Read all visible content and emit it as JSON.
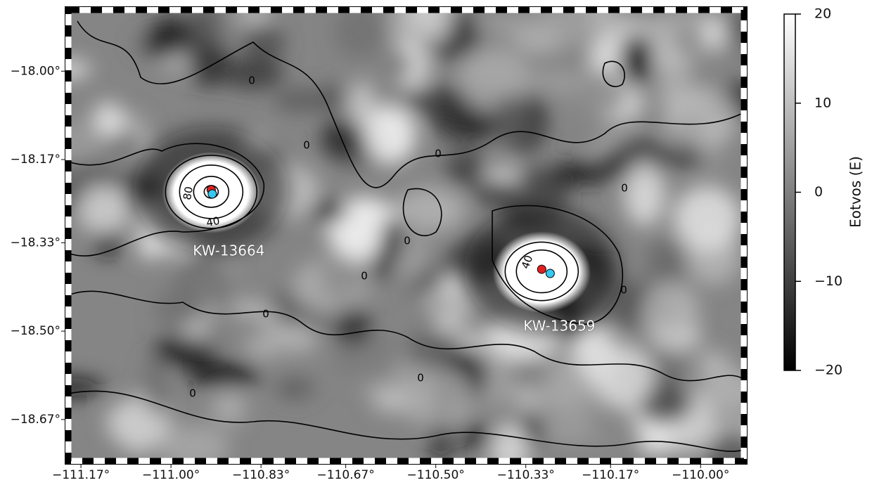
{
  "map": {
    "xlim": [
      -111.194,
      -109.918
    ],
    "ylim": [
      -18.75,
      -17.882
    ],
    "xticks": [
      {
        "value": -111.17,
        "label": "−111.17°"
      },
      {
        "value": -111.0,
        "label": "−111.00°"
      },
      {
        "value": -110.83,
        "label": "−110.83°"
      },
      {
        "value": -110.67,
        "label": "−110.67°"
      },
      {
        "value": -110.5,
        "label": "−110.50°"
      },
      {
        "value": -110.33,
        "label": "−110.33°"
      },
      {
        "value": -110.17,
        "label": "−110.17°"
      },
      {
        "value": -110.0,
        "label": "−110.00°"
      }
    ],
    "yticks": [
      {
        "value": -18.0,
        "label": "−18.00°"
      },
      {
        "value": -18.17,
        "label": "−18.17°"
      },
      {
        "value": -18.33,
        "label": "−18.33°"
      },
      {
        "value": -18.5,
        "label": "−18.50°"
      },
      {
        "value": -18.67,
        "label": "−18.67°"
      }
    ],
    "stations": [
      {
        "name": "KW-13664",
        "red": [
          -110.924,
          -18.228
        ],
        "cyan": [
          -110.922,
          -18.236
        ]
      },
      {
        "name": "KW-13659",
        "red": [
          -110.3,
          -18.381
        ],
        "cyan": [
          -110.284,
          -18.389
        ]
      }
    ],
    "contour_labels": [
      "80",
      "40",
      "40",
      "0",
      "0",
      "0",
      "0",
      "0",
      "0",
      "0",
      "0",
      "0",
      "0"
    ],
    "colorbar": {
      "label": "Eotvos (E)",
      "lim": [
        -20,
        20
      ],
      "ticks": [
        20,
        10,
        0,
        {
          "value": -10,
          "label": "−10"
        },
        {
          "value": -20,
          "label": "−20"
        }
      ]
    }
  }
}
